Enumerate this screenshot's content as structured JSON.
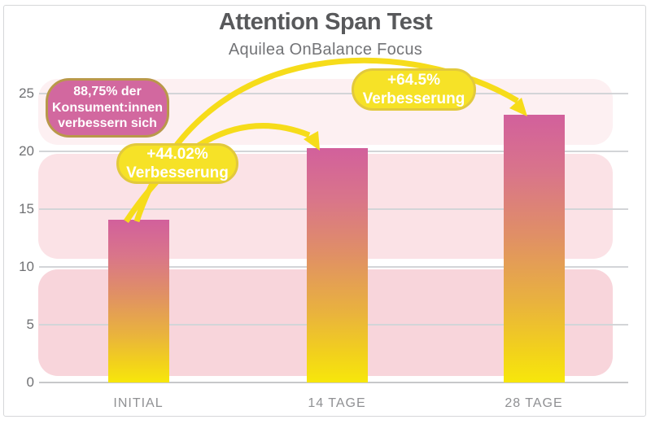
{
  "header": {
    "title": "Attention Span Test",
    "subtitle": "Aquilea OnBalance Focus"
  },
  "chart_data": {
    "type": "bar",
    "title": "Attention Span Test",
    "subtitle": "Aquilea OnBalance Focus",
    "categories": [
      "INITIAL",
      "14 TAGE",
      "28 TAGE"
    ],
    "values": [
      14.1,
      20.3,
      23.2
    ],
    "ylim": [
      0,
      25
    ],
    "yticks": [
      0,
      5,
      10,
      15,
      20,
      25
    ],
    "grid": true,
    "legend": false,
    "annotations": [
      {
        "text": "88,75% der Konsument:innen verbessern sich",
        "shape": "pink-bubble"
      },
      {
        "text": "+44.02% Verbesserung",
        "shape": "yellow-bubble",
        "arrow_from": "INITIAL",
        "arrow_to": "14 TAGE"
      },
      {
        "text": "+64.5% Verbesserung",
        "shape": "yellow-bubble",
        "arrow_from": "INITIAL",
        "arrow_to": "28 TAGE"
      }
    ]
  },
  "bubbles": {
    "consumers": {
      "line1": "88,75% der",
      "line2": "Konsument:innen",
      "line3": "verbessern sich"
    },
    "improve14": {
      "line1": "+44.02%",
      "line2": "Verbesserung"
    },
    "improve28": {
      "line1": "+64.5%",
      "line2": "Verbesserung"
    }
  },
  "colors": {
    "bubble_pink": "#d2689f",
    "bubble_pink_border": "#b9984a",
    "bubble_yellow": "#f6e227",
    "bubble_yellow_border": "#e2c93c",
    "arrow": "#f6dc1a",
    "band_upper": "#fdf0f2",
    "band_middle": "#fbe2e6",
    "band_lower": "#f8d5db",
    "bar_gradient_stops": [
      "#d2609c 0%",
      "#d9758a 22%",
      "#e08f66 45%",
      "#e9b23e 70%",
      "#f2d11c 88%",
      "#f7e70b 100%"
    ],
    "gridline": "#d3d5d8",
    "baseline": "#c7c8ca",
    "title_text": "#58595b",
    "subtitle_text": "#737477",
    "ytick_text": "#6f7073",
    "xtick_text": "#8f9093"
  }
}
